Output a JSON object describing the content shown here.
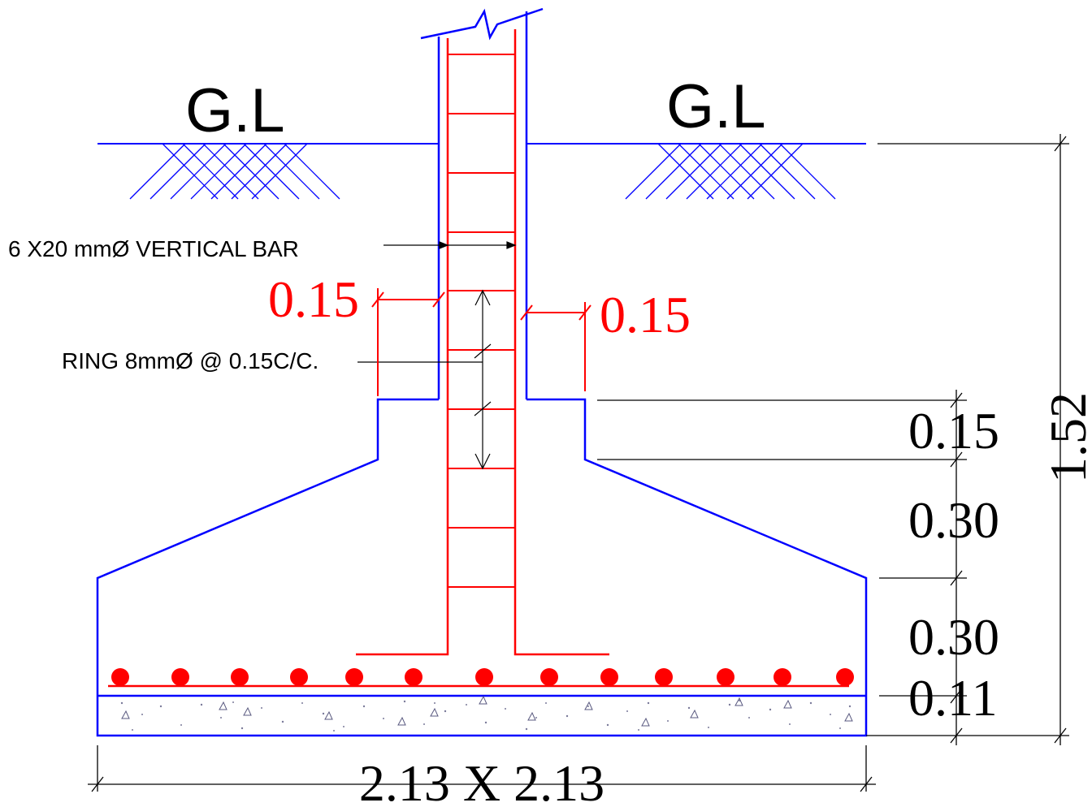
{
  "ground_level": {
    "left_label": "G.L",
    "right_label": "G.L"
  },
  "annotations": {
    "vertical_bar": "6 X20 mmØ VERTICAL BAR",
    "ring": "RING 8mmØ @ 0.15C/C."
  },
  "column_offsets": {
    "left": "0.15",
    "right": "0.15"
  },
  "heights": {
    "pedestal": "0.15",
    "slope": "0.30",
    "footing": "0.30",
    "pcc": "0.11",
    "total": "1.52"
  },
  "base_size": "2.13 X 2.13",
  "colors": {
    "concrete": "#0000ff",
    "steel": "#ff0000",
    "dimension": "#000000"
  }
}
